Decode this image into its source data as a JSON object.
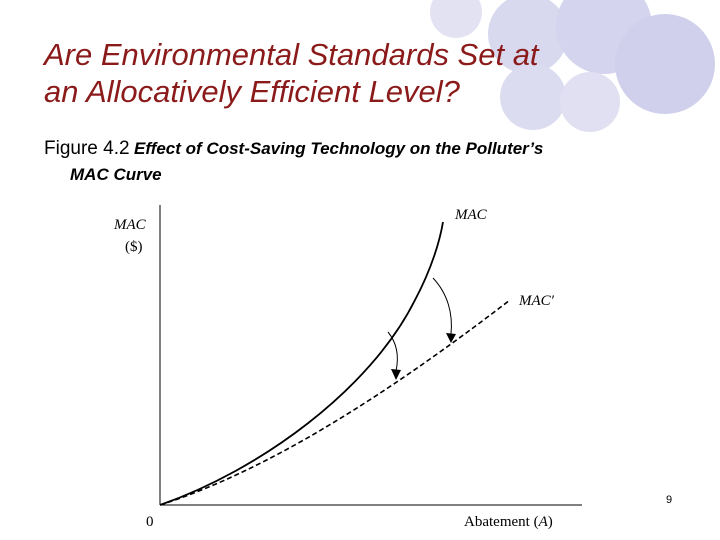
{
  "slide": {
    "title_line1": "Are Environmental Standards Set at",
    "title_line2": "an Allocatively Efficient Level?",
    "figure_label": "Figure 4.2",
    "caption_part1": "Effect of Cost-Saving Technology on the Polluter’s",
    "caption_part2": "MAC Curve",
    "page_number": "9"
  },
  "diagram": {
    "y_axis_label_line1": "MAC",
    "y_axis_label_line2": "($)",
    "origin_label": "0",
    "x_axis_label_text": "Abatement",
    "x_axis_label_var": "A",
    "curve_mac_label": "MAC",
    "curve_mac_prime_label": "MAC′"
  },
  "colors": {
    "title": "#8b1a1a",
    "decor_circle": "#d4d4ee",
    "line": "#000000"
  }
}
